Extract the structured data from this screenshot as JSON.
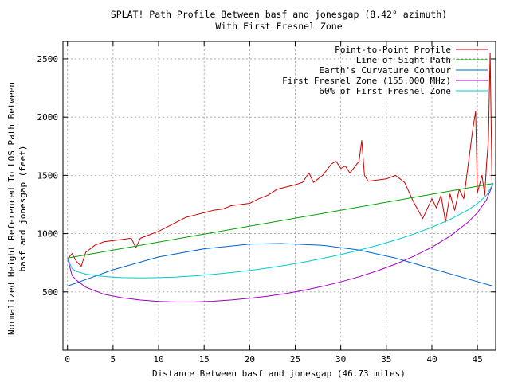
{
  "chart_data": {
    "type": "line",
    "title": "SPLAT! Path Profile Between basf and jonesgap (8.42° azimuth)",
    "subtitle": "With First Fresnel Zone",
    "xlabel": "Distance Between basf and jonesgap (46.73 miles)",
    "ylabel_lines": [
      "Normalized Height Referenced To LOS Path Between",
      "basf and jonesgap (feet)"
    ],
    "xlim": [
      -0.5,
      47.0
    ],
    "ylim": [
      0,
      2650
    ],
    "x_ticks": [
      0,
      5,
      10,
      15,
      20,
      25,
      30,
      35,
      40,
      45
    ],
    "x_tick_labels": [
      "0",
      "5",
      "10",
      "15",
      "20",
      "25",
      "30",
      "35",
      "40",
      "45"
    ],
    "y_ticks": [
      500,
      1000,
      1500,
      2000,
      2500
    ],
    "y_tick_labels": [
      "500",
      "1000",
      "1500",
      "2000",
      "2500"
    ],
    "grid": true,
    "legend_position": "top-right",
    "series": [
      {
        "name": "Point-to-Point Profile",
        "color": "#cc0000",
        "x": [
          0,
          0.5,
          1.0,
          1.5,
          2.0,
          3.0,
          4.0,
          5.0,
          6.0,
          7.0,
          7.5,
          8.0,
          9.0,
          10.0,
          11.0,
          12.0,
          13.0,
          14.0,
          15.0,
          16.0,
          17.0,
          18.0,
          19.0,
          20.0,
          21.0,
          22.0,
          23.0,
          24.0,
          25.0,
          25.8,
          26.5,
          27.0,
          28.0,
          29.0,
          29.5,
          30.0,
          30.5,
          31.0,
          32.0,
          32.3,
          32.6,
          33.0,
          34.0,
          35.0,
          36.0,
          37.0,
          38.0,
          38.5,
          39.0,
          40.0,
          40.5,
          41.0,
          41.5,
          42.0,
          42.5,
          43.0,
          43.5,
          44.0,
          44.5,
          44.8,
          45.0,
          45.5,
          45.8,
          46.0,
          46.2,
          46.4,
          46.6
        ],
        "y": [
          780,
          830,
          760,
          720,
          840,
          900,
          930,
          940,
          950,
          960,
          880,
          960,
          990,
          1020,
          1060,
          1100,
          1140,
          1160,
          1180,
          1200,
          1210,
          1240,
          1250,
          1260,
          1300,
          1330,
          1380,
          1400,
          1420,
          1440,
          1520,
          1440,
          1500,
          1600,
          1620,
          1560,
          1580,
          1520,
          1620,
          1800,
          1500,
          1450,
          1460,
          1470,
          1500,
          1440,
          1270,
          1200,
          1130,
          1300,
          1220,
          1330,
          1100,
          1340,
          1200,
          1380,
          1300,
          1600,
          1900,
          2050,
          1350,
          1500,
          1330,
          1600,
          1800,
          2550,
          1450
        ]
      },
      {
        "name": "Line of Sight Path",
        "color": "#00a000",
        "x": [
          0,
          46.73
        ],
        "y": [
          790,
          1430
        ]
      },
      {
        "name": "Earth's Curvature Contour",
        "color": "#0066cc",
        "x": [
          0,
          5,
          10,
          15,
          20,
          23.4,
          28,
          32,
          36,
          40,
          44,
          46.73
        ],
        "y": [
          550,
          690,
          800,
          870,
          910,
          915,
          900,
          860,
          790,
          700,
          610,
          550
        ]
      },
      {
        "name": "First Fresnel Zone (155.000 MHz)",
        "color": "#a000c0",
        "x": [
          0,
          0.5,
          1,
          2,
          4,
          6,
          8,
          10,
          12,
          14,
          16,
          18,
          20,
          22,
          24,
          26,
          28,
          30,
          32,
          34,
          36,
          38,
          40,
          42,
          44,
          45,
          46,
          46.73
        ],
        "y": [
          790,
          640,
          600,
          540,
          480,
          450,
          430,
          418,
          413,
          414,
          420,
          431,
          446,
          464,
          487,
          515,
          548,
          586,
          630,
          680,
          738,
          805,
          884,
          979,
          1100,
          1180,
          1290,
          1430
        ]
      },
      {
        "name": "60% of First Fresnel Zone",
        "color": "#00cccc",
        "x": [
          0,
          0.5,
          1,
          2,
          4,
          6,
          8,
          10,
          12,
          14,
          16,
          18,
          20,
          22,
          24,
          26,
          28,
          30,
          32,
          34,
          36,
          38,
          40,
          42,
          44,
          45,
          46,
          46.73
        ],
        "y": [
          790,
          700,
          675,
          652,
          632,
          622,
          620,
          622,
          628,
          638,
          651,
          666,
          684,
          705,
          729,
          756,
          787,
          820,
          858,
          899,
          945,
          996,
          1055,
          1122,
          1205,
          1258,
          1330,
          1430
        ]
      }
    ]
  }
}
